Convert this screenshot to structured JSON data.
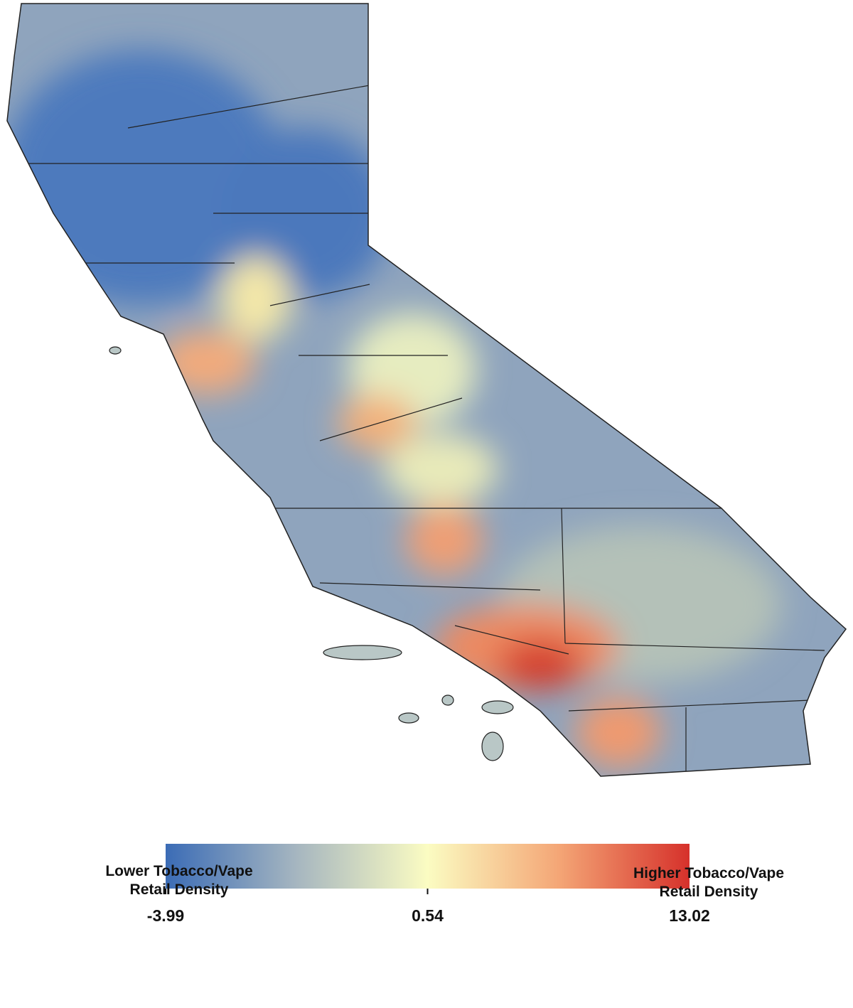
{
  "legend": {
    "low_label": [
      "Lower Tobacco/Vape",
      "Retail Density"
    ],
    "high_label": [
      "Higher Tobacco/Vape",
      "Retail Density"
    ],
    "colors": [
      "#3b6cb6",
      "#a6b6c0",
      "#fbfcc2",
      "#f4a676",
      "#d6312b"
    ],
    "ticks": [
      -3.99,
      0.54,
      13.02
    ]
  }
}
